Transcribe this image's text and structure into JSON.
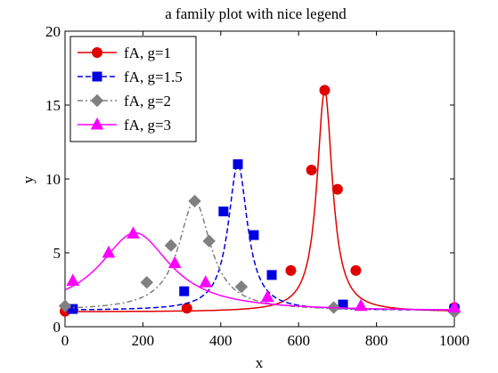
{
  "chart_data": {
    "type": "line",
    "title": "a family plot with nice legend",
    "xlabel": "x",
    "ylabel": "y",
    "xlim": [
      0,
      1000
    ],
    "ylim": [
      0,
      20
    ],
    "xticks": [
      0,
      200,
      400,
      600,
      800,
      1000
    ],
    "yticks": [
      0,
      5,
      10,
      15,
      20
    ],
    "grid": false,
    "legend_position": "top-left",
    "series": [
      {
        "name": "fA, g=1",
        "color": "#e00000",
        "line_style": "solid",
        "marker": "circle",
        "curve": {
          "x0": 667,
          "w": 24,
          "base": 1.0,
          "amp": 15.0
        },
        "points": [
          {
            "x": 0,
            "y": 1.05
          },
          {
            "x": 313,
            "y": 1.25
          },
          {
            "x": 580,
            "y": 3.8
          },
          {
            "x": 633,
            "y": 10.6
          },
          {
            "x": 667,
            "y": 16.0
          },
          {
            "x": 700,
            "y": 9.3
          },
          {
            "x": 747,
            "y": 3.8
          },
          {
            "x": 1000,
            "y": 1.3
          }
        ]
      },
      {
        "name": "fA, g=1.5",
        "color": "#0000e0",
        "line_style": "dashed",
        "marker": "square",
        "curve": {
          "x0": 444,
          "w": 30,
          "base": 1.1,
          "amp": 9.9
        },
        "points": [
          {
            "x": 20,
            "y": 1.2
          },
          {
            "x": 306,
            "y": 2.4
          },
          {
            "x": 407,
            "y": 7.8
          },
          {
            "x": 444,
            "y": 11.0
          },
          {
            "x": 485,
            "y": 6.2
          },
          {
            "x": 531,
            "y": 3.5
          },
          {
            "x": 714,
            "y": 1.5
          },
          {
            "x": 1000,
            "y": 1.2
          }
        ]
      },
      {
        "name": "fA, g=2",
        "color": "#808080",
        "line_style": "dashdot",
        "marker": "diamond",
        "curve": {
          "x0": 333,
          "w": 50,
          "base": 1.1,
          "amp": 7.4
        },
        "points": [
          {
            "x": 0,
            "y": 1.4
          },
          {
            "x": 210,
            "y": 3.0
          },
          {
            "x": 272,
            "y": 5.5
          },
          {
            "x": 333,
            "y": 8.5
          },
          {
            "x": 370,
            "y": 5.8
          },
          {
            "x": 453,
            "y": 2.7
          },
          {
            "x": 690,
            "y": 1.3
          },
          {
            "x": 1000,
            "y": 1.0
          }
        ]
      },
      {
        "name": "fA, g=3",
        "color": "#ff00ff",
        "line_style": "solid",
        "marker": "triangle",
        "curve": {
          "x0": 180,
          "w": 110,
          "base": 1.05,
          "amp": 5.3
        },
        "points": [
          {
            "x": 20,
            "y": 3.1
          },
          {
            "x": 112,
            "y": 5.0
          },
          {
            "x": 175,
            "y": 6.3
          },
          {
            "x": 282,
            "y": 4.3
          },
          {
            "x": 361,
            "y": 3.0
          },
          {
            "x": 520,
            "y": 2.0
          },
          {
            "x": 760,
            "y": 1.4
          },
          {
            "x": 1000,
            "y": 1.3
          }
        ]
      }
    ]
  }
}
